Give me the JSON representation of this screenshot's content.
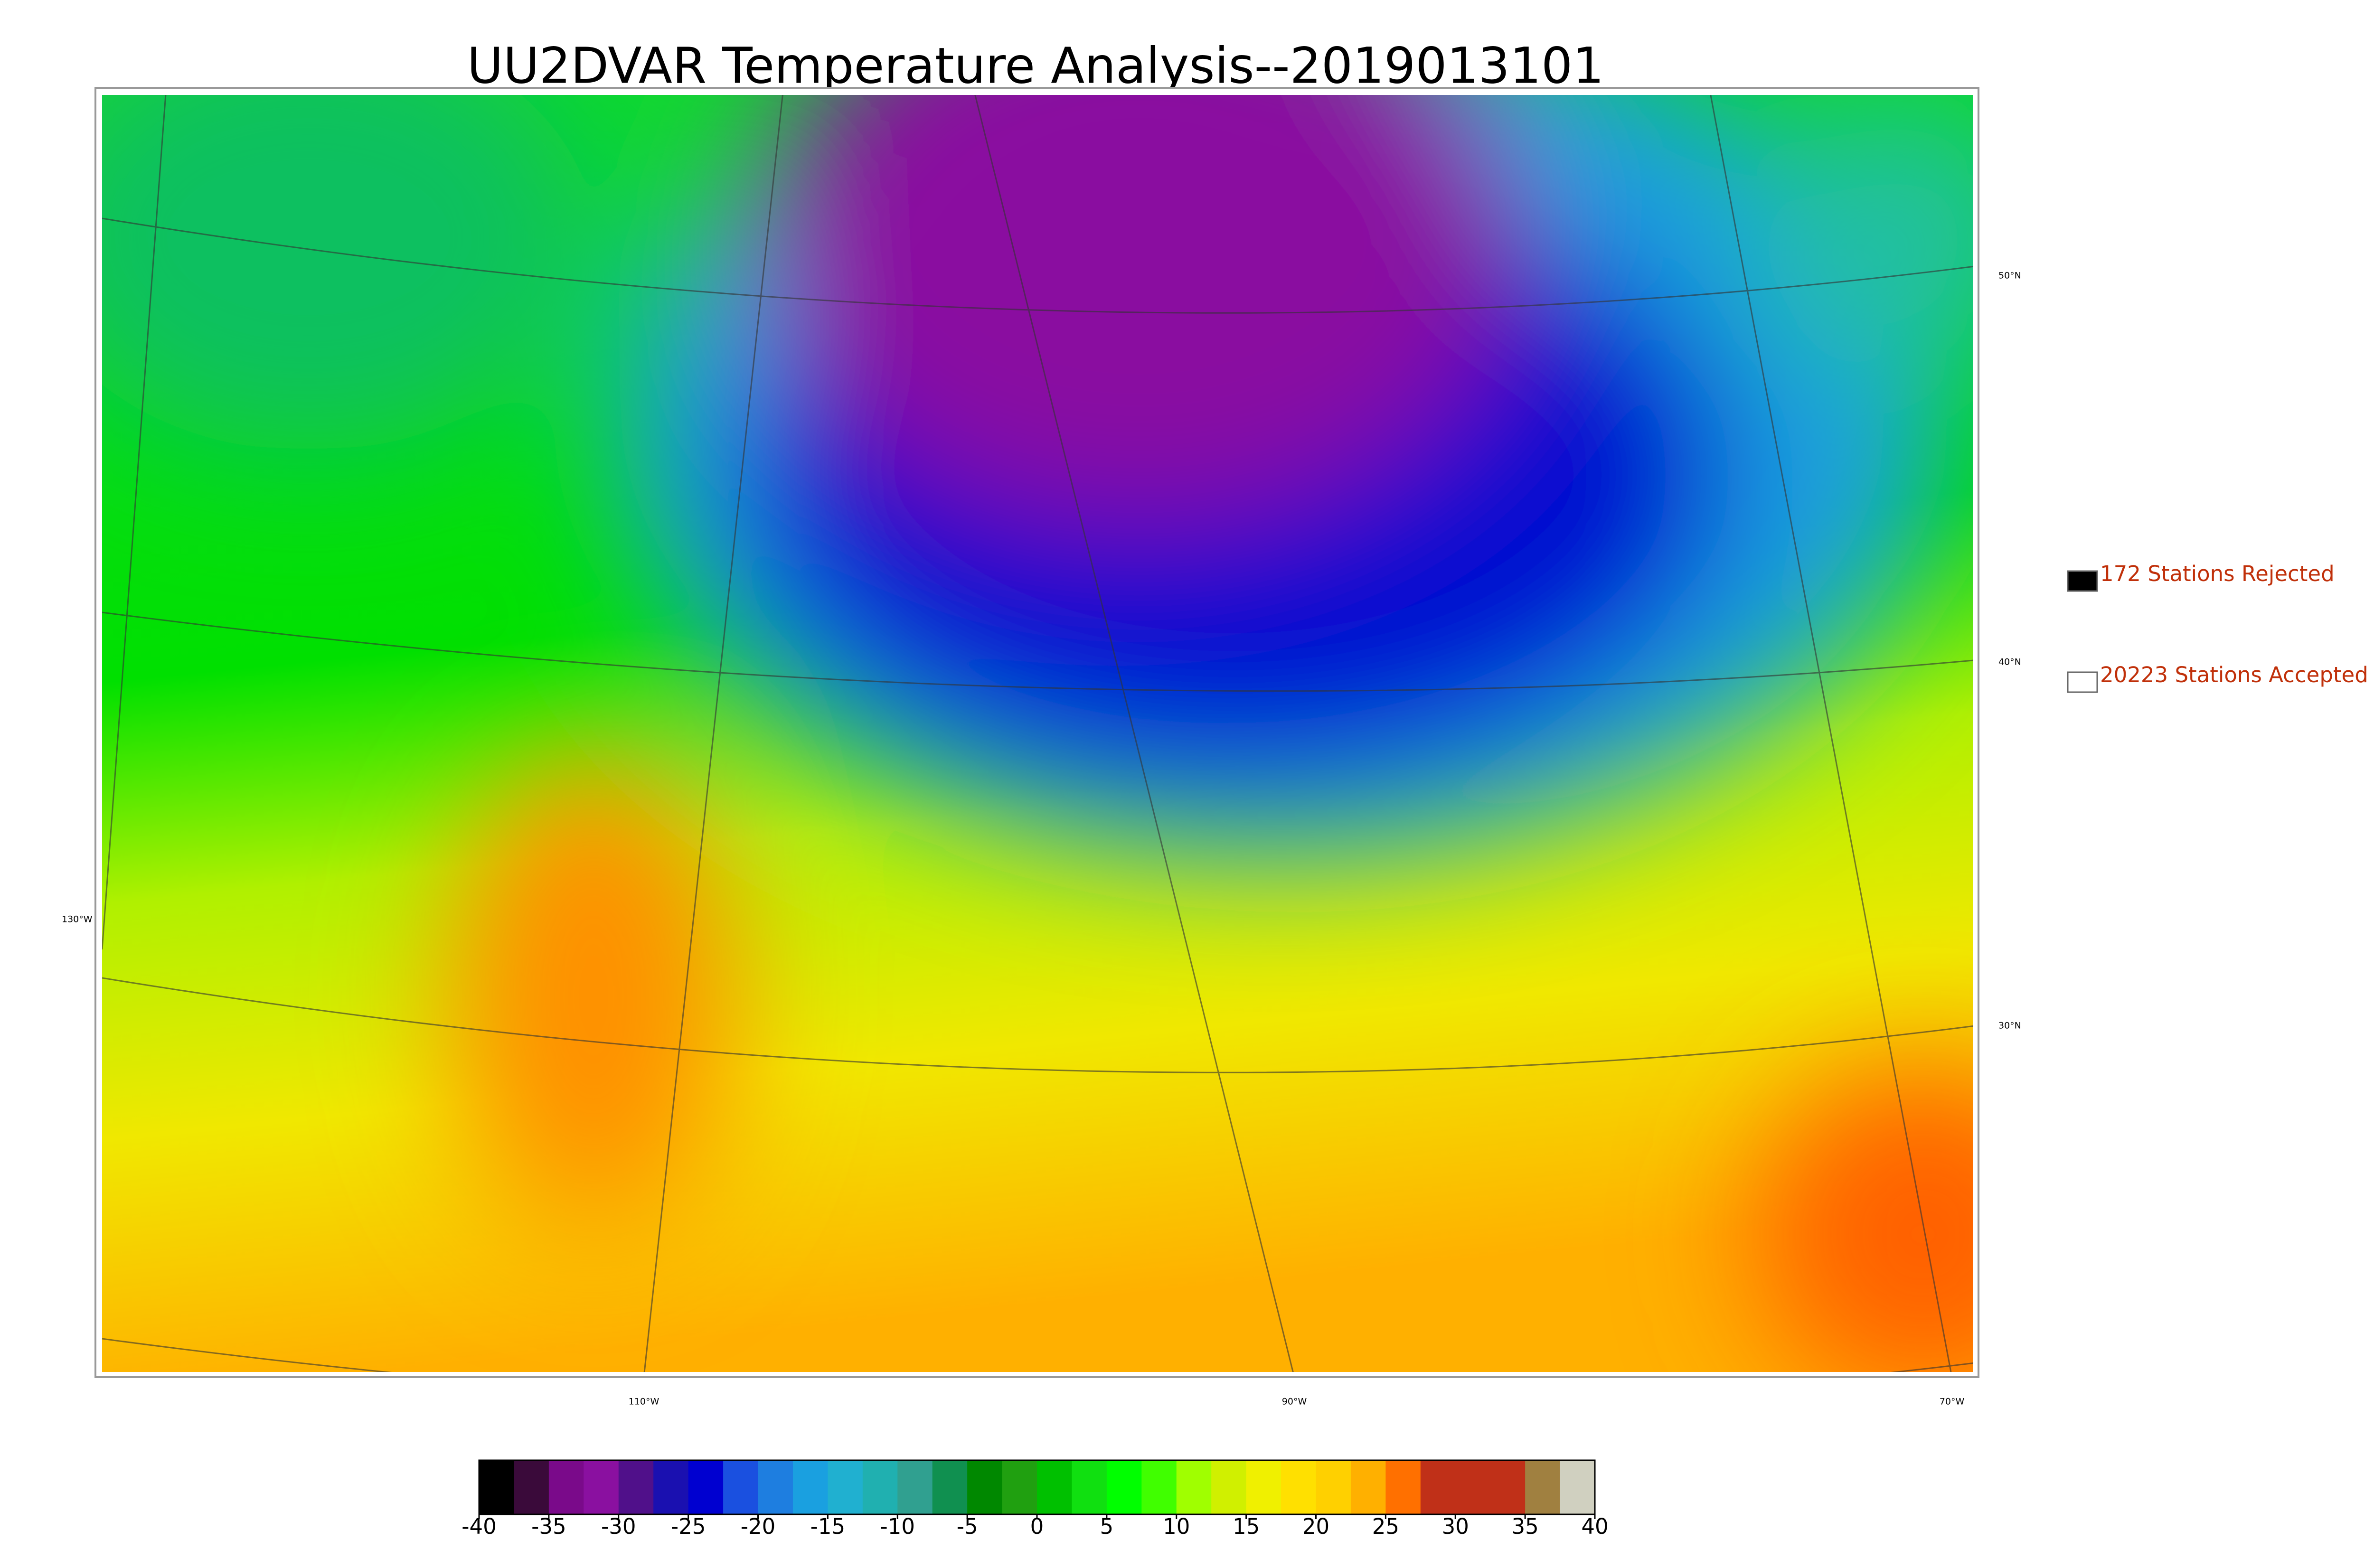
{
  "title": "UU2DVAR Temperature Analysis--2019013101",
  "map": {
    "lat_labels": [
      "50°N",
      "40°N",
      "30°N"
    ],
    "lon_labels": [
      "130°W",
      "110°W",
      "90°W",
      "70°W"
    ]
  },
  "legend": [
    "172 Stations Rejected",
    "20223 Stations Accepted"
  ],
  "colorbar": {
    "min": -40,
    "max": 40,
    "ticks": [
      -40,
      -35,
      -30,
      -25,
      -20,
      -15,
      -10,
      -5,
      0,
      5,
      10,
      15,
      20,
      25,
      30,
      35,
      40
    ],
    "colors": [
      "#000000",
      "#3a0a3a",
      "#7a0a8a",
      "#8a10a0",
      "#50108a",
      "#1a10b0",
      "#0000d0",
      "#1a50e0",
      "#1e7ee0",
      "#1aa0e0",
      "#20b0d0",
      "#20b0b0",
      "#30a090",
      "#109050",
      "#008800",
      "#20a010",
      "#00c000",
      "#10e010",
      "#00ff00",
      "#40ff00",
      "#a0ff00",
      "#d0f000",
      "#f0f000",
      "#ffe000",
      "#ffd000",
      "#ffb000",
      "#ff7000",
      "#c03018",
      "#c03018",
      "#c03018",
      "#a08040",
      "#d0d0c0"
    ]
  }
}
